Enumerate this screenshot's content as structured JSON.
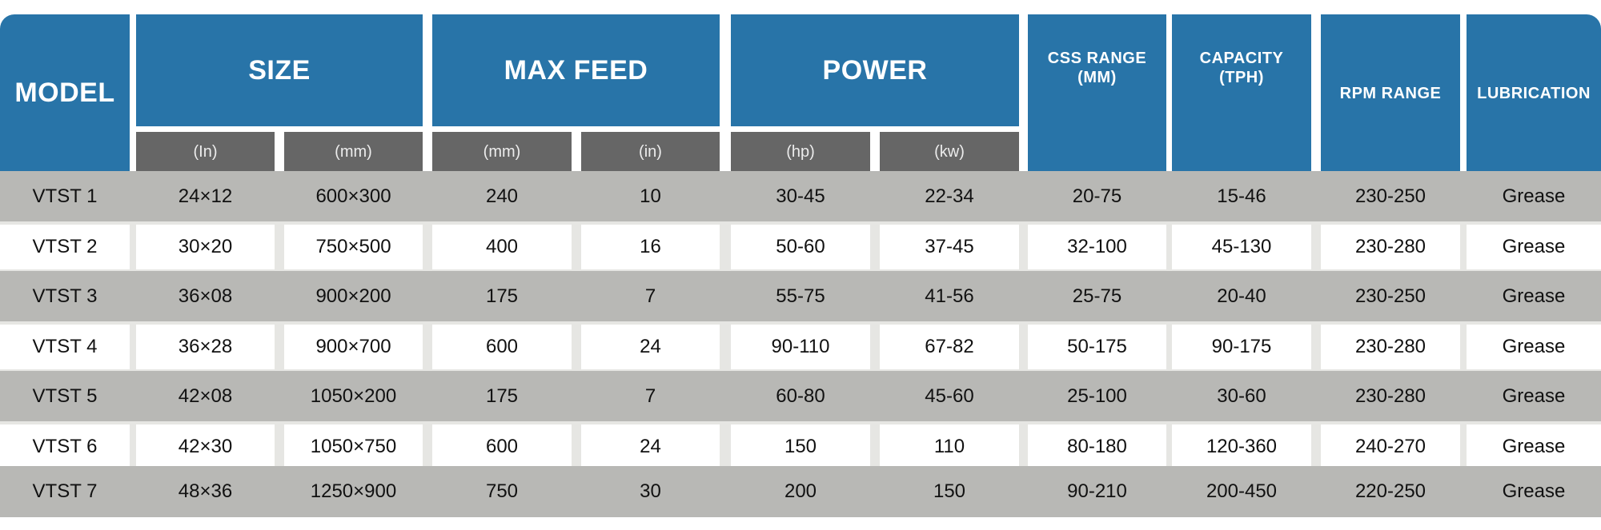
{
  "table": {
    "headers": {
      "model": "MODEL",
      "size": "SIZE",
      "max_feed": "MAX FEED",
      "power": "POWER",
      "css_range_line1": "CSS RANGE",
      "css_range_line2": "(MM)",
      "capacity_line1": "CAPACITY",
      "capacity_line2": "(TPH)",
      "rpm_range": "RPM RANGE",
      "lubrication": "LUBRICATION"
    },
    "subheaders": {
      "size_in": "(In)",
      "size_mm": "(mm)",
      "feed_mm": "(mm)",
      "feed_in": "(in)",
      "power_hp": "(hp)",
      "power_kw": "(kw)"
    },
    "rows": [
      {
        "model": "VTST 1",
        "size_in": "24×12",
        "size_mm": "600×300",
        "feed_mm": "240",
        "feed_in": "10",
        "power_hp": "30-45",
        "power_kw": "22-34",
        "css": "20-75",
        "capacity": "15-46",
        "rpm": "230-250",
        "lube": "Grease"
      },
      {
        "model": "VTST 2",
        "size_in": "30×20",
        "size_mm": "750×500",
        "feed_mm": "400",
        "feed_in": "16",
        "power_hp": "50-60",
        "power_kw": "37-45",
        "css": "32-100",
        "capacity": "45-130",
        "rpm": "230-280",
        "lube": "Grease"
      },
      {
        "model": "VTST 3",
        "size_in": "36×08",
        "size_mm": "900×200",
        "feed_mm": "175",
        "feed_in": "7",
        "power_hp": "55-75",
        "power_kw": "41-56",
        "css": "25-75",
        "capacity": "20-40",
        "rpm": "230-250",
        "lube": "Grease"
      },
      {
        "model": "VTST 4",
        "size_in": "36×28",
        "size_mm": "900×700",
        "feed_mm": "600",
        "feed_in": "24",
        "power_hp": "90-110",
        "power_kw": "67-82",
        "css": "50-175",
        "capacity": "90-175",
        "rpm": "230-280",
        "lube": "Grease"
      },
      {
        "model": "VTST 5",
        "size_in": "42×08",
        "size_mm": "1050×200",
        "feed_mm": "175",
        "feed_in": "7",
        "power_hp": "60-80",
        "power_kw": "45-60",
        "css": "25-100",
        "capacity": "30-60",
        "rpm": "230-280",
        "lube": "Grease"
      },
      {
        "model": "VTST 6",
        "size_in": "42×30",
        "size_mm": "1050×750",
        "feed_mm": "600",
        "feed_in": "24",
        "power_hp": "150",
        "power_kw": "110",
        "css": "80-180",
        "capacity": "120-360",
        "rpm": "240-270",
        "lube": "Grease"
      },
      {
        "model": "VTST 7",
        "size_in": "48×36",
        "size_mm": "1250×900",
        "feed_mm": "750",
        "feed_in": "30",
        "power_hp": "200",
        "power_kw": "150",
        "css": "90-210",
        "capacity": "200-450",
        "rpm": "220-250",
        "lube": "Grease"
      }
    ]
  }
}
